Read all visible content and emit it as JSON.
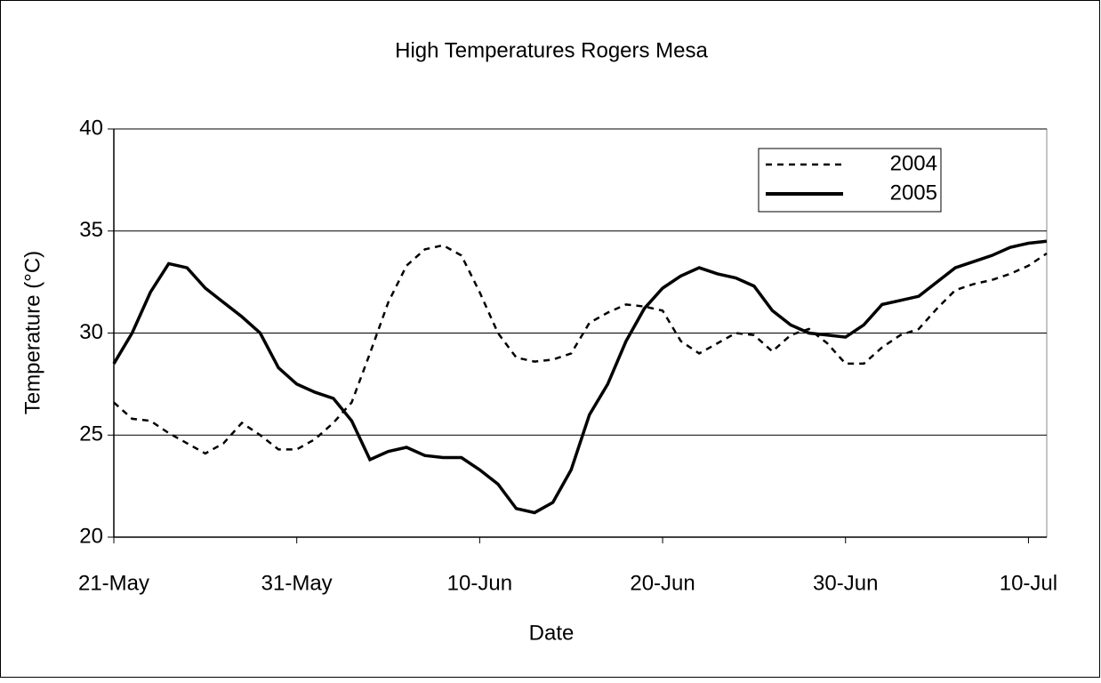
{
  "chart_data": {
    "type": "line",
    "title": "High Temperatures Rogers Mesa",
    "xlabel": "Date",
    "ylabel": "Temperature (°C)",
    "categories": [
      "21-May",
      null,
      null,
      null,
      null,
      null,
      null,
      null,
      null,
      null,
      "31-May",
      null,
      null,
      null,
      null,
      null,
      null,
      null,
      null,
      null,
      "10-Jun",
      null,
      null,
      null,
      null,
      null,
      null,
      null,
      null,
      null,
      "20-Jun",
      null,
      null,
      null,
      null,
      null,
      null,
      null,
      null,
      null,
      "30-Jun",
      null,
      null,
      null,
      null,
      null,
      null,
      null,
      null,
      null,
      "10-Jul",
      null
    ],
    "series": [
      {
        "name": "2004",
        "color": "#000000",
        "line_style": "dashed",
        "values": [
          26.6,
          25.8,
          25.7,
          25.1,
          24.6,
          24.1,
          24.6,
          25.6,
          25.0,
          24.3,
          24.3,
          24.8,
          25.6,
          26.6,
          29.0,
          31.5,
          33.3,
          34.1,
          34.3,
          33.8,
          32.0,
          30.0,
          28.8,
          28.6,
          28.7,
          29.0,
          30.5,
          31.0,
          31.4,
          31.3,
          31.1,
          29.6,
          29.0,
          29.5,
          30.0,
          29.9,
          29.1,
          29.9,
          30.2,
          29.5,
          28.5,
          28.5,
          29.3,
          29.9,
          30.2,
          31.2,
          32.1,
          32.4,
          32.6,
          32.9,
          33.3,
          33.9
        ]
      },
      {
        "name": "2005",
        "color": "#000000",
        "line_style": "solid",
        "values": [
          28.5,
          30.0,
          32.0,
          33.4,
          33.2,
          32.2,
          31.5,
          30.8,
          30.0,
          28.3,
          27.5,
          27.1,
          26.8,
          25.7,
          23.8,
          24.2,
          24.4,
          24.0,
          23.9,
          23.9,
          23.3,
          22.6,
          21.4,
          21.2,
          21.7,
          23.3,
          26.0,
          27.5,
          29.6,
          31.2,
          32.2,
          32.8,
          33.2,
          32.9,
          32.7,
          32.3,
          31.1,
          30.4,
          30.0,
          29.9,
          29.8,
          30.4,
          31.4,
          31.6,
          31.8,
          32.5,
          33.2,
          33.5,
          33.8,
          34.2,
          34.4,
          34.5
        ]
      }
    ],
    "ylim": [
      20,
      40
    ],
    "yticks": [
      20,
      25,
      30,
      35,
      40
    ],
    "grid": true,
    "legend": "top-right"
  }
}
